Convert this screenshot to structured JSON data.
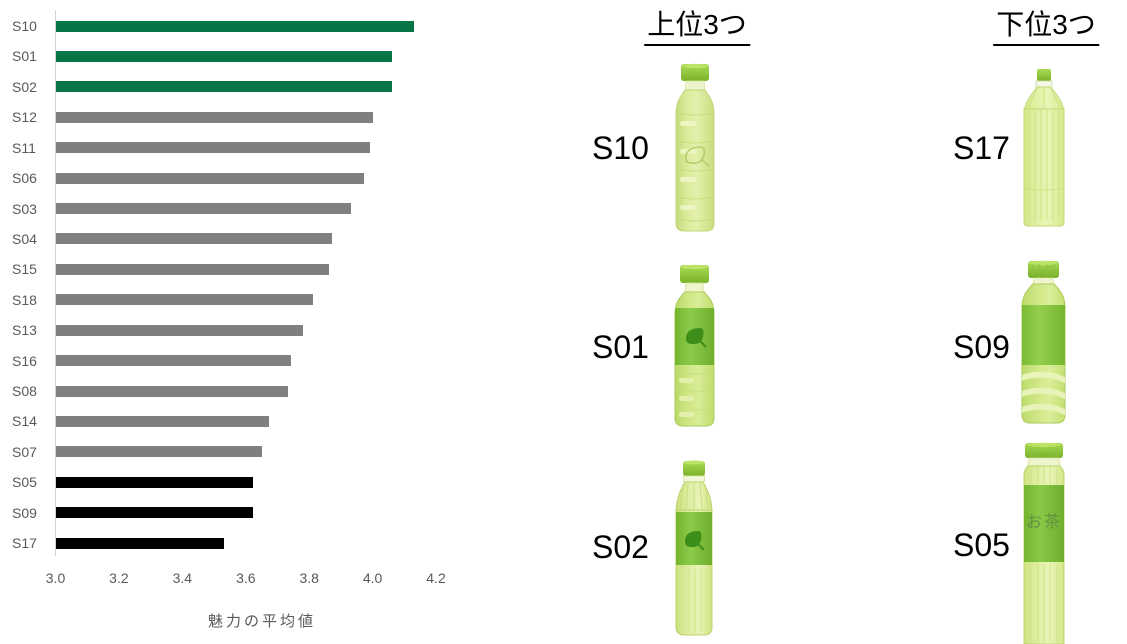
{
  "chart_data": {
    "type": "bar",
    "orientation": "horizontal",
    "title": "",
    "xlabel": "魅力の平均値",
    "xlim": [
      3.0,
      4.2
    ],
    "xticks": [
      "3.0",
      "3.2",
      "3.4",
      "3.6",
      "3.8",
      "4.0",
      "4.2"
    ],
    "grid": false,
    "legend": "none",
    "categories": [
      "S10",
      "S01",
      "S02",
      "S12",
      "S11",
      "S06",
      "S03",
      "S04",
      "S15",
      "S18",
      "S13",
      "S16",
      "S08",
      "S14",
      "S07",
      "S05",
      "S09",
      "S17"
    ],
    "values": [
      4.13,
      4.06,
      4.06,
      4.0,
      3.99,
      3.97,
      3.93,
      3.87,
      3.86,
      3.81,
      3.78,
      3.74,
      3.73,
      3.67,
      3.65,
      3.62,
      3.62,
      3.53
    ],
    "bar_colors": [
      "#067647",
      "#067647",
      "#067647",
      "#7F7F7F",
      "#7F7F7F",
      "#7F7F7F",
      "#7F7F7F",
      "#7F7F7F",
      "#7F7F7F",
      "#7F7F7F",
      "#7F7F7F",
      "#7F7F7F",
      "#7F7F7F",
      "#7F7F7F",
      "#7F7F7F",
      "#000000",
      "#000000",
      "#000000"
    ],
    "color_legend": {
      "top3": "#067647",
      "middle": "#7F7F7F",
      "bottom3": "#000000"
    },
    "axis_color": "#D2D2D2",
    "label_color": "#595959"
  },
  "panels": {
    "top": {
      "title": "上位3つ",
      "items": [
        {
          "label": "S10",
          "bottle": "light-bottle-leaf-watermark"
        },
        {
          "label": "S01",
          "bottle": "green-label-leaf-bottle"
        },
        {
          "label": "S02",
          "bottle": "fluted-green-label-leaf-bottle"
        }
      ]
    },
    "bottom": {
      "title": "下位3つ",
      "items": [
        {
          "label": "S17",
          "bottle": "tall-ribbed-bottle-no-label"
        },
        {
          "label": "S09",
          "bottle": "green-label-plain-bottle"
        },
        {
          "label": "S05",
          "bottle": "square-green-label-tea-bottle",
          "bottle_text": "お茶"
        }
      ]
    }
  }
}
